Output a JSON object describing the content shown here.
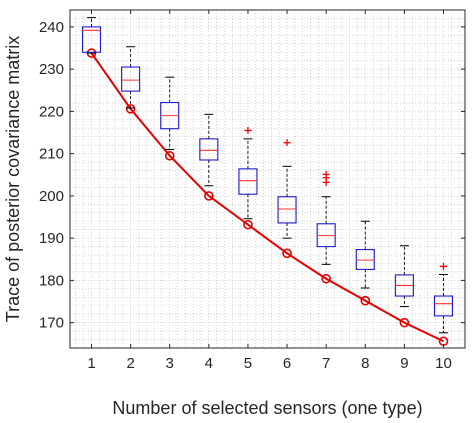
{
  "chart_data": {
    "type": "box",
    "title": "",
    "xlabel": "Number of selected sensors (one type)",
    "ylabel": "Trace of posterior covariance matrix",
    "x_ticks": [
      1,
      2,
      3,
      4,
      5,
      6,
      7,
      8,
      9,
      10
    ],
    "y_ticks": [
      170,
      180,
      190,
      200,
      210,
      220,
      230,
      240
    ],
    "xlim": [
      0.45,
      10.55
    ],
    "ylim": [
      164,
      244
    ],
    "grid": "minor-dotted",
    "boxes": [
      {
        "x": 1,
        "whisker_low": 233.8,
        "q1": 234.0,
        "median": 239.2,
        "q3": 240.0,
        "whisker_high": 242.2,
        "outliers": []
      },
      {
        "x": 2,
        "whisker_low": 220.8,
        "q1": 224.8,
        "median": 227.4,
        "q3": 230.5,
        "whisker_high": 235.3,
        "outliers": []
      },
      {
        "x": 3,
        "whisker_low": 211.0,
        "q1": 215.9,
        "median": 219.0,
        "q3": 222.1,
        "whisker_high": 228.1,
        "outliers": []
      },
      {
        "x": 4,
        "whisker_low": 202.4,
        "q1": 208.5,
        "median": 210.8,
        "q3": 213.5,
        "whisker_high": 219.3,
        "outliers": []
      },
      {
        "x": 5,
        "whisker_low": 194.6,
        "q1": 200.4,
        "median": 203.6,
        "q3": 206.4,
        "whisker_high": 213.5,
        "outliers": [
          215.5
        ]
      },
      {
        "x": 6,
        "whisker_low": 190.0,
        "q1": 193.6,
        "median": 196.9,
        "q3": 199.8,
        "whisker_high": 207.0,
        "outliers": [
          212.6
        ]
      },
      {
        "x": 7,
        "whisker_low": 183.8,
        "q1": 188.0,
        "median": 190.6,
        "q3": 193.4,
        "whisker_high": 199.8,
        "outliers": [
          203.2,
          204.3,
          205.1
        ]
      },
      {
        "x": 8,
        "whisker_low": 178.2,
        "q1": 182.6,
        "median": 184.8,
        "q3": 187.3,
        "whisker_high": 194.0,
        "outliers": []
      },
      {
        "x": 9,
        "whisker_low": 173.8,
        "q1": 176.3,
        "median": 178.8,
        "q3": 181.3,
        "whisker_high": 188.2,
        "outliers": []
      },
      {
        "x": 10,
        "whisker_low": 167.6,
        "q1": 171.6,
        "median": 174.5,
        "q3": 176.3,
        "whisker_high": 181.4,
        "outliers": [
          183.3
        ]
      }
    ],
    "series": [
      {
        "type": "line",
        "marker": "circle",
        "color": "#e50000",
        "x": [
          1,
          2,
          3,
          4,
          5,
          6,
          7,
          8,
          9,
          10
        ],
        "y": [
          233.8,
          220.6,
          209.5,
          200.0,
          193.2,
          186.4,
          180.4,
          175.2,
          170.0,
          165.6
        ]
      }
    ],
    "colors": {
      "box": "#1c1cc8",
      "median": "#ff3030",
      "whisker": "#000000",
      "outlier": "#ff0000",
      "line": "#e50000",
      "grid": "#b8b8b8"
    }
  }
}
